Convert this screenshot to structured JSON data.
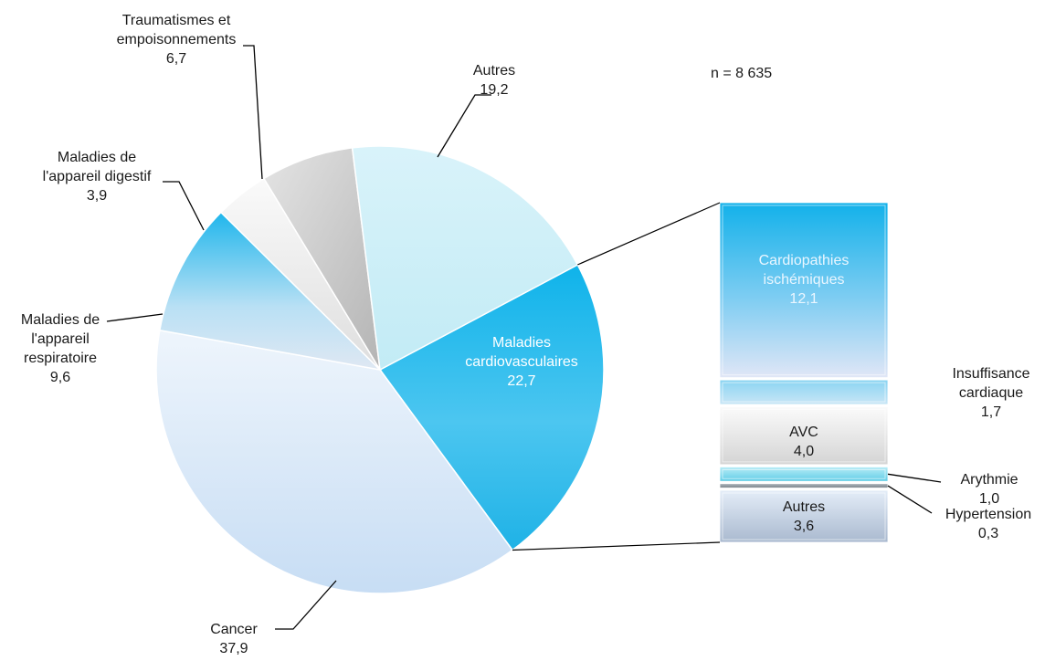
{
  "chart_data": {
    "type": "pie",
    "annotation": "n = 8 635",
    "main": {
      "slices": [
        {
          "label": "Maladies cardiovasculaires",
          "value": 22.7,
          "value_label": "22,7"
        },
        {
          "label": "Cancer",
          "value": 37.9,
          "value_label": "37,9"
        },
        {
          "label": "Maladies de l'appareil respiratoire",
          "value": 9.6,
          "value_label": "9,6"
        },
        {
          "label": "Maladies de l'appareil digestif",
          "value": 3.9,
          "value_label": "3,9"
        },
        {
          "label": "Traumatismes et empoisonnements",
          "value": 6.7,
          "value_label": "6,7"
        },
        {
          "label": "Autres",
          "value": 19.2,
          "value_label": "19,2"
        }
      ]
    },
    "breakdown": {
      "parent": "Maladies cardiovasculaires",
      "segments": [
        {
          "label": "Cardiopathies ischémiques",
          "value": 12.1,
          "value_label": "12,1"
        },
        {
          "label": "Insuffisance cardiaque",
          "value": 1.7,
          "value_label": "1,7"
        },
        {
          "label": "AVC",
          "value": 4.0,
          "value_label": "4,0"
        },
        {
          "label": "Arythmie",
          "value": 1.0,
          "value_label": "1,0"
        },
        {
          "label": "Hypertension",
          "value": 0.3,
          "value_label": "0,3"
        },
        {
          "label": "Autres",
          "value": 3.6,
          "value_label": "3,6"
        }
      ]
    },
    "colors": {
      "cardiovasculaire": "#19b6ec",
      "cancer": "#d2e6f8",
      "respiratoire": "#3cc3ee",
      "digestif": "#eeeeee",
      "traumatismes": "#c8c8c8",
      "autres": "#c9eef6",
      "arythmie": "#7fd8ec",
      "hypertension": "#9aa3aa",
      "stack_autres": "#b6c7dc"
    }
  }
}
